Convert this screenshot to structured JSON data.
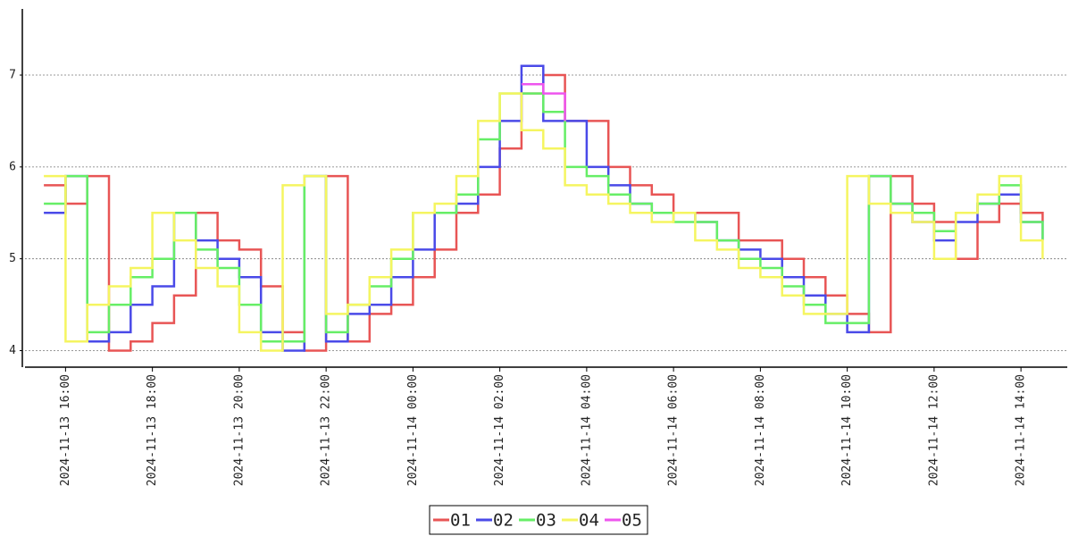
{
  "chart_data": {
    "type": "line",
    "step": true,
    "x": [
      "2024-11-13 15:30",
      "2024-11-13 16:00",
      "2024-11-13 16:30",
      "2024-11-13 17:00",
      "2024-11-13 17:30",
      "2024-11-13 18:00",
      "2024-11-13 18:30",
      "2024-11-13 19:00",
      "2024-11-13 19:30",
      "2024-11-13 20:00",
      "2024-11-13 20:30",
      "2024-11-13 21:00",
      "2024-11-13 21:30",
      "2024-11-13 22:00",
      "2024-11-13 22:30",
      "2024-11-13 23:00",
      "2024-11-13 23:30",
      "2024-11-14 00:00",
      "2024-11-14 00:30",
      "2024-11-14 01:00",
      "2024-11-14 01:30",
      "2024-11-14 02:00",
      "2024-11-14 02:30",
      "2024-11-14 03:00",
      "2024-11-14 03:30",
      "2024-11-14 04:00",
      "2024-11-14 04:30",
      "2024-11-14 05:00",
      "2024-11-14 05:30",
      "2024-11-14 06:00",
      "2024-11-14 06:30",
      "2024-11-14 07:00",
      "2024-11-14 07:30",
      "2024-11-14 08:00",
      "2024-11-14 08:30",
      "2024-11-14 09:00",
      "2024-11-14 09:30",
      "2024-11-14 10:00",
      "2024-11-14 10:30",
      "2024-11-14 11:00",
      "2024-11-14 11:30",
      "2024-11-14 12:00",
      "2024-11-14 12:30",
      "2024-11-14 13:00",
      "2024-11-14 13:30",
      "2024-11-14 14:00",
      "2024-11-14 14:30"
    ],
    "series": [
      {
        "name": "01",
        "color": "#e85555",
        "values": [
          5.8,
          5.6,
          5.9,
          4.0,
          4.1,
          4.3,
          4.6,
          5.5,
          5.2,
          5.1,
          4.7,
          4.2,
          4.0,
          5.9,
          4.1,
          4.4,
          4.5,
          4.8,
          5.1,
          5.5,
          5.7,
          6.2,
          6.8,
          7.0,
          6.5,
          6.5,
          6.0,
          5.8,
          5.7,
          5.5,
          5.5,
          5.5,
          5.2,
          5.2,
          5.0,
          4.8,
          4.6,
          4.4,
          4.2,
          5.9,
          5.6,
          5.4,
          5.0,
          5.4,
          5.6,
          5.5,
          5.4
        ]
      },
      {
        "name": "02",
        "color": "#4a4ae8",
        "values": [
          5.5,
          5.9,
          4.1,
          4.2,
          4.5,
          4.7,
          5.5,
          5.2,
          5.0,
          4.8,
          4.2,
          4.0,
          5.9,
          4.1,
          4.4,
          4.5,
          4.8,
          5.1,
          5.5,
          5.6,
          6.0,
          6.5,
          7.1,
          6.5,
          6.5,
          6.0,
          5.8,
          5.6,
          5.5,
          5.5,
          5.4,
          5.2,
          5.1,
          5.0,
          4.8,
          4.6,
          4.4,
          4.2,
          5.9,
          5.6,
          5.4,
          5.2,
          5.4,
          5.6,
          5.7,
          5.4,
          5.2
        ]
      },
      {
        "name": "03",
        "color": "#66ee66",
        "values": [
          5.6,
          5.9,
          4.2,
          4.5,
          4.8,
          5.0,
          5.5,
          5.1,
          4.9,
          4.5,
          4.1,
          4.1,
          5.9,
          4.2,
          4.5,
          4.7,
          5.0,
          5.5,
          5.5,
          5.7,
          6.3,
          6.8,
          6.8,
          6.6,
          6.0,
          5.9,
          5.7,
          5.6,
          5.5,
          5.4,
          5.4,
          5.2,
          5.0,
          4.9,
          4.7,
          4.5,
          4.3,
          4.3,
          5.9,
          5.6,
          5.5,
          5.3,
          5.5,
          5.6,
          5.8,
          5.4,
          5.2
        ]
      },
      {
        "name": "04",
        "color": "#f5f560",
        "values": [
          5.9,
          4.1,
          4.5,
          4.7,
          4.9,
          5.5,
          5.2,
          4.9,
          4.7,
          4.2,
          4.0,
          5.8,
          5.9,
          4.4,
          4.5,
          4.8,
          5.1,
          5.5,
          5.6,
          5.9,
          6.5,
          6.8,
          6.4,
          6.2,
          5.8,
          5.7,
          5.6,
          5.5,
          5.4,
          5.5,
          5.2,
          5.1,
          4.9,
          4.8,
          4.6,
          4.4,
          4.4,
          5.9,
          5.6,
          5.5,
          5.4,
          5.0,
          5.5,
          5.7,
          5.9,
          5.2,
          5.0
        ]
      },
      {
        "name": "05",
        "color": "#ee55ee",
        "values": [
          null,
          null,
          null,
          null,
          null,
          null,
          null,
          null,
          null,
          null,
          null,
          null,
          null,
          null,
          null,
          null,
          null,
          null,
          null,
          null,
          null,
          null,
          6.9,
          6.8,
          6.5,
          null,
          null,
          null,
          null,
          null,
          null,
          null,
          null,
          null,
          null,
          null,
          null,
          null,
          null,
          null,
          null,
          null,
          null,
          null,
          null,
          null,
          null
        ]
      }
    ],
    "xlim": [
      "2024-11-13 15:04",
      "2024-11-14 15:04"
    ],
    "xticks": [
      "2024-11-13 16:00",
      "2024-11-13 18:00",
      "2024-11-13 20:00",
      "2024-11-13 22:00",
      "2024-11-14 00:00",
      "2024-11-14 02:00",
      "2024-11-14 04:00",
      "2024-11-14 06:00",
      "2024-11-14 08:00",
      "2024-11-14 10:00",
      "2024-11-14 12:00",
      "2024-11-14 14:00"
    ],
    "ylim": [
      3.82,
      7.72
    ],
    "yticks": [
      4,
      5,
      6,
      7
    ],
    "grid": true,
    "legend": "bottom"
  }
}
